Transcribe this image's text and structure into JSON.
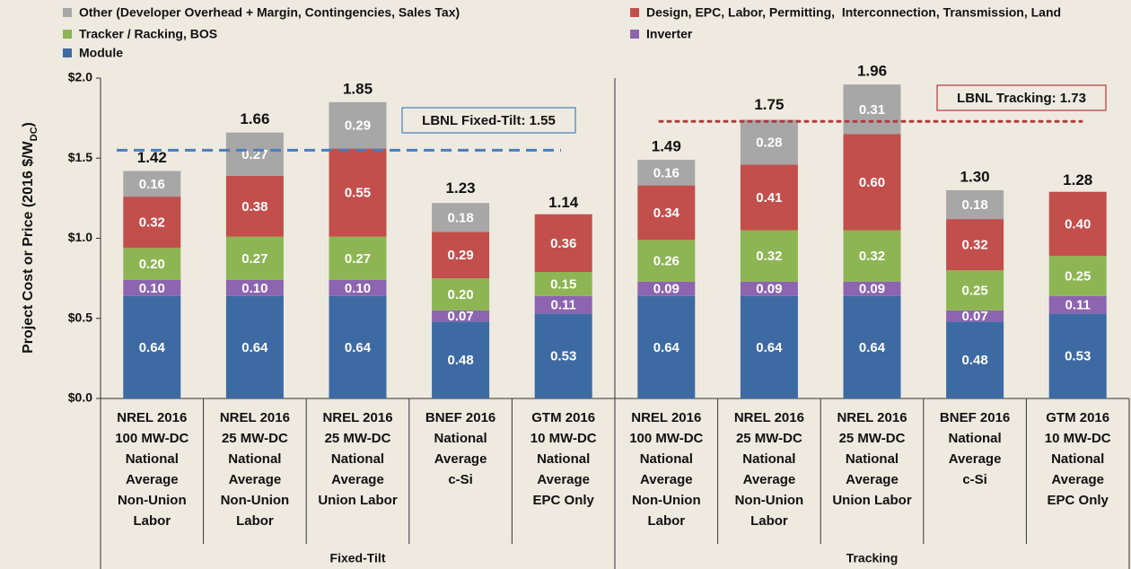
{
  "chart_data": {
    "type": "stacked_bar",
    "ylabel": [
      "Project Cost or Price (2016 $/W",
      "DC",
      ")"
    ],
    "categories": [
      [
        "NREL 2016",
        "100 MW-DC",
        "National",
        "Average",
        "Non-Union",
        "Labor"
      ],
      [
        "NREL 2016",
        "25 MW-DC",
        "National",
        "Average",
        "Non-Union",
        "Labor"
      ],
      [
        "NREL 2016",
        "25 MW-DC",
        "National",
        "Average",
        "Union Labor"
      ],
      [
        "BNEF 2016",
        "National",
        "Average",
        "c-Si"
      ],
      [
        "GTM 2016",
        "10 MW-DC",
        "National",
        "Average",
        "EPC Only"
      ],
      [
        "NREL 2016",
        "100 MW-DC",
        "National",
        "Average",
        "Non-Union",
        "Labor"
      ],
      [
        "NREL 2016",
        "25 MW-DC",
        "National",
        "Average",
        "Non-Union",
        "Labor"
      ],
      [
        "NREL 2016",
        "25 MW-DC",
        "National",
        "Average",
        "Union Labor"
      ],
      [
        "BNEF 2016",
        "National",
        "Average",
        "c-Si"
      ],
      [
        "GTM 2016",
        "10 MW-DC",
        "National",
        "Average",
        "EPC Only"
      ]
    ],
    "groups": [
      "Fixed-Tilt",
      "Tracking"
    ],
    "series": [
      {
        "name": "Module",
        "color": "#3e6aa3",
        "values": [
          0.64,
          0.64,
          0.64,
          0.48,
          0.53,
          0.64,
          0.64,
          0.64,
          0.48,
          0.53
        ],
        "value_labels": [
          "0.64",
          "0.64",
          "0.64",
          "0.48",
          "0.53",
          "0.64",
          "0.64",
          "0.64",
          "0.48",
          "0.53"
        ]
      },
      {
        "name": "Inverter",
        "color": "#8c64b0",
        "values": [
          0.1,
          0.1,
          0.1,
          0.07,
          0.11,
          0.09,
          0.09,
          0.09,
          0.07,
          0.11
        ],
        "value_labels": [
          "0.10",
          "0.10",
          "0.10",
          "0.07",
          "0.11",
          "0.09",
          "0.09",
          "0.09",
          "0.07",
          "0.11"
        ]
      },
      {
        "name": "Tracker / Racking, BOS",
        "color": "#8db553",
        "values": [
          0.2,
          0.27,
          0.27,
          0.2,
          0.15,
          0.26,
          0.32,
          0.32,
          0.25,
          0.25
        ],
        "value_labels": [
          "0.20",
          "0.27",
          "0.27",
          "0.20",
          "0.15",
          "0.26",
          "0.32",
          "0.32",
          "0.25",
          "0.25"
        ]
      },
      {
        "name": "Design, EPC, Labor, Permitting,  Interconnection, Transmission, Land",
        "color": "#c24f4c",
        "values": [
          0.32,
          0.38,
          0.55,
          0.29,
          0.36,
          0.34,
          0.41,
          0.6,
          0.32,
          0.4
        ],
        "value_labels": [
          "0.32",
          "0.38",
          "0.55",
          "0.29",
          "0.36",
          "0.34",
          "0.41",
          "0.60",
          "0.32",
          "0.40"
        ]
      },
      {
        "name": "Other (Developer Overhead + Margin, Contingencies, Sales Tax)",
        "color": "#a7a7a7",
        "values": [
          0.16,
          0.27,
          0.29,
          0.18,
          null,
          0.16,
          0.28,
          0.31,
          0.18,
          null
        ],
        "value_labels": [
          "0.16",
          "0.27",
          "0.29",
          "0.18",
          null,
          "0.16",
          "0.28",
          "0.31",
          "0.18",
          null
        ]
      }
    ],
    "totals": [
      1.42,
      1.66,
      1.85,
      1.23,
      1.14,
      1.49,
      1.75,
      1.96,
      1.3,
      1.28
    ],
    "total_labels": [
      "1.42",
      "1.66",
      "1.85",
      "1.23",
      "1.14",
      "1.49",
      "1.75",
      "1.96",
      "1.30",
      "1.28"
    ],
    "reference_lines": [
      {
        "label": "LBNL Fixed-Tilt: 1.55",
        "value": 1.55,
        "color": "#4a7ebb",
        "style": "dashed"
      },
      {
        "label": "LBNL Tracking: 1.73",
        "value": 1.73,
        "color": "#b03a3a",
        "style": "dotted"
      }
    ],
    "ylim": [
      0,
      2.0
    ],
    "yticks": [
      {
        "value": 0,
        "label": "$0.0"
      },
      {
        "value": 0.5,
        "label": "$0.5"
      },
      {
        "value": 1.0,
        "label": "$1.0"
      },
      {
        "value": 1.5,
        "label": "$1.5"
      },
      {
        "value": 2.0,
        "label": "$2.0"
      }
    ]
  }
}
